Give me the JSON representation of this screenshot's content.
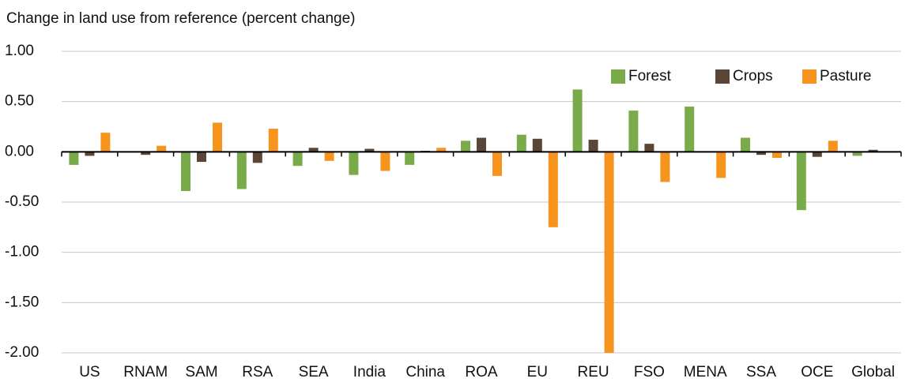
{
  "chart_data": {
    "type": "bar",
    "title": "Change in land use from reference (percent change)",
    "categories": [
      "US",
      "RNAM",
      "SAM",
      "RSA",
      "SEA",
      "India",
      "China",
      "ROA",
      "EU",
      "REU",
      "FSO",
      "MENA",
      "SSA",
      "OCE",
      "Global"
    ],
    "series": [
      {
        "name": "Forest",
        "color": "#7aab4a",
        "values": [
          -0.13,
          0.0,
          -0.39,
          -0.37,
          -0.14,
          -0.23,
          -0.13,
          0.11,
          0.17,
          0.62,
          0.41,
          0.45,
          0.14,
          -0.58,
          -0.04
        ]
      },
      {
        "name": "Crops",
        "color": "#5a4636",
        "values": [
          -0.04,
          -0.03,
          -0.1,
          -0.11,
          0.04,
          0.03,
          0.01,
          0.14,
          0.13,
          0.12,
          0.08,
          0.0,
          -0.03,
          -0.05,
          0.02
        ]
      },
      {
        "name": "Pasture",
        "color": "#f7941d",
        "values": [
          0.19,
          0.06,
          0.29,
          0.23,
          -0.09,
          -0.19,
          0.04,
          -0.24,
          -0.75,
          -2.0,
          -0.3,
          -0.26,
          -0.06,
          0.11,
          0.0
        ]
      }
    ],
    "ylim": [
      -2.0,
      1.0
    ],
    "yticks": [
      {
        "value": 1.0,
        "label": "1.00"
      },
      {
        "value": 0.5,
        "label": "0.50"
      },
      {
        "value": 0.0,
        "label": "0.00"
      },
      {
        "value": -0.5,
        "label": "-0.50"
      },
      {
        "value": -1.0,
        "label": "-1.00"
      },
      {
        "value": -1.5,
        "label": "-1.50"
      },
      {
        "value": -2.0,
        "label": "-2.00"
      }
    ],
    "grid": true,
    "legend": "upper right"
  }
}
